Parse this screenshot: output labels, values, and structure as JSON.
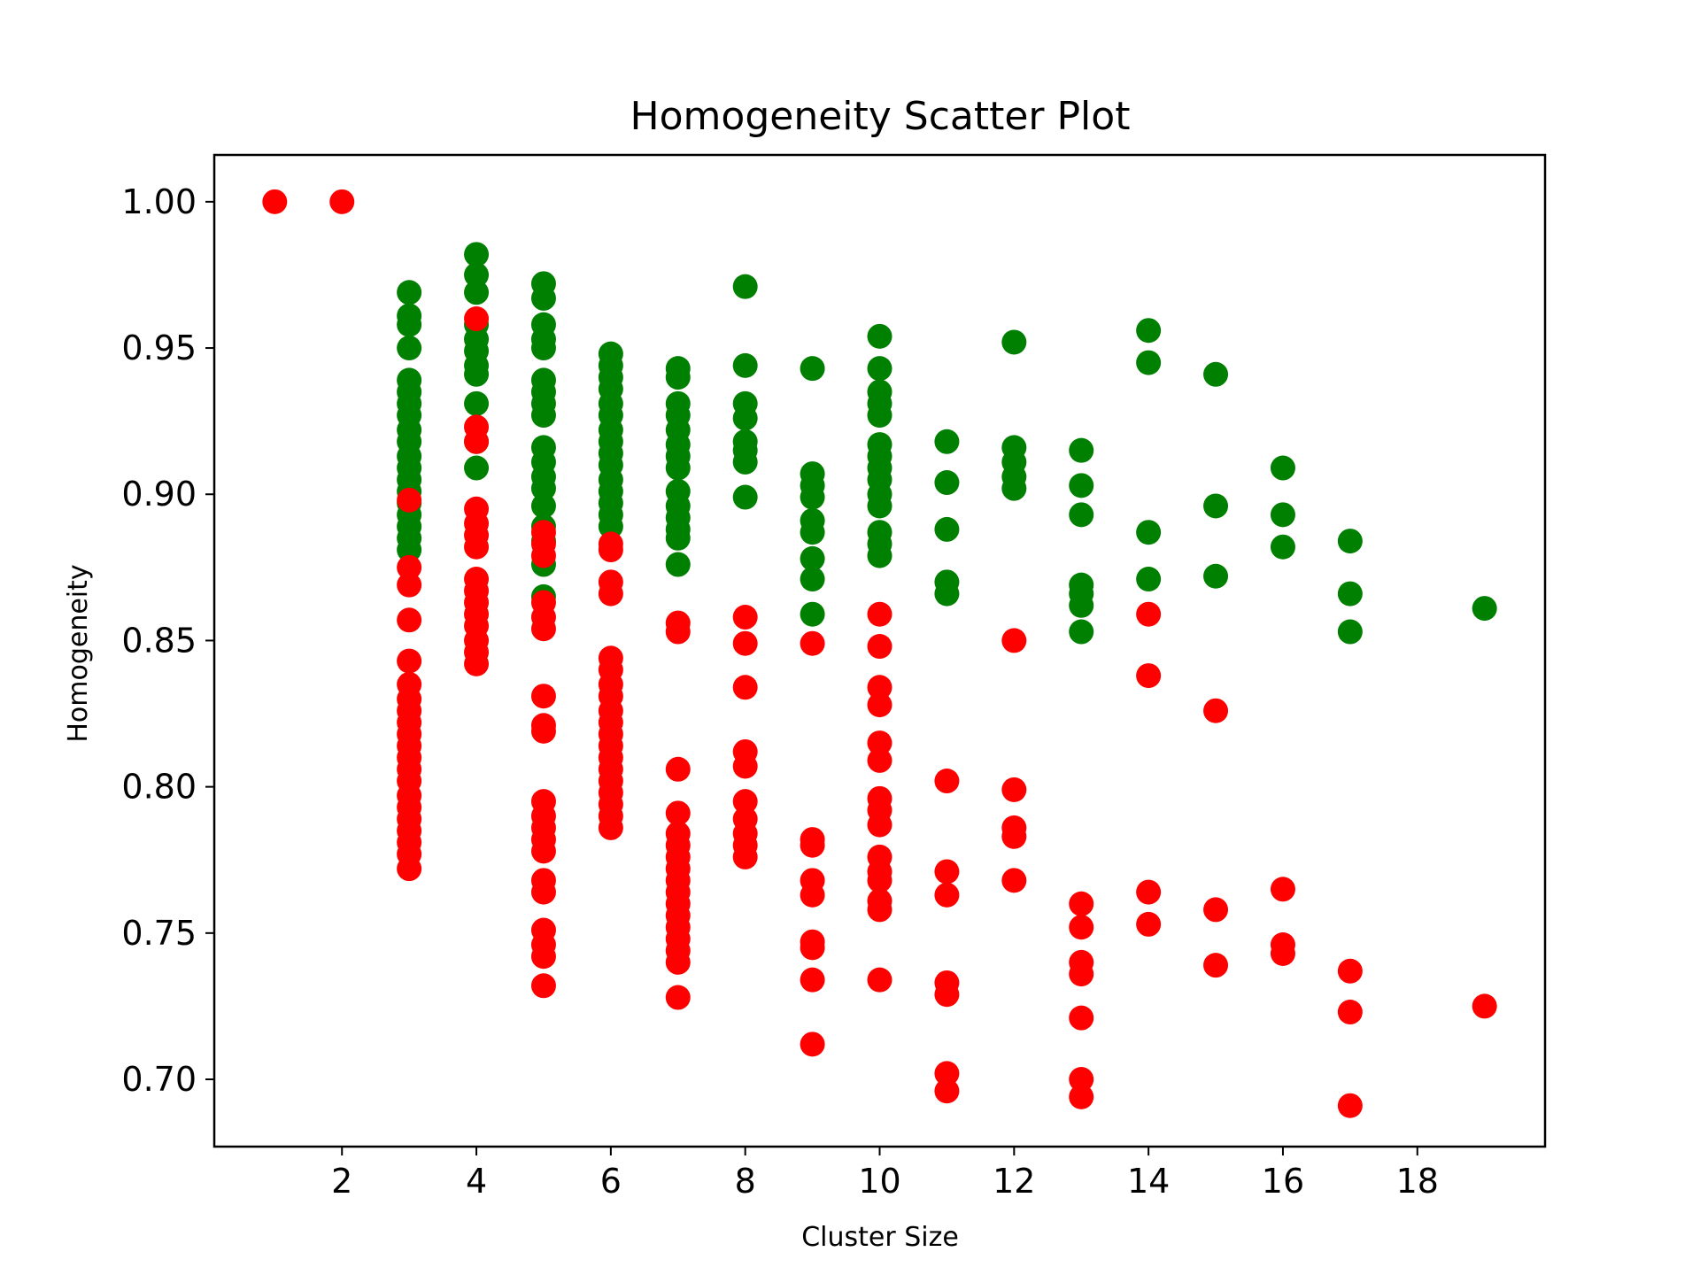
{
  "chart_data": {
    "type": "scatter",
    "title": "Homogeneity Scatter Plot",
    "xlabel": "Cluster Size",
    "ylabel": "Homogeneity",
    "xlim": [
      0.1,
      19.9
    ],
    "ylim": [
      0.677,
      1.016
    ],
    "xticks": [
      2,
      4,
      6,
      8,
      10,
      12,
      14,
      16,
      18
    ],
    "yticks": [
      0.7,
      0.75,
      0.8,
      0.85,
      0.9,
      0.95,
      1.0
    ],
    "grid": false,
    "legend": "none",
    "series": [
      {
        "color": "#008000",
        "points": [
          [
            3,
            0.969
          ],
          [
            3,
            0.961
          ],
          [
            3,
            0.958
          ],
          [
            3,
            0.95
          ],
          [
            3,
            0.939
          ],
          [
            3,
            0.935
          ],
          [
            3,
            0.931
          ],
          [
            3,
            0.927
          ],
          [
            3,
            0.922
          ],
          [
            3,
            0.918
          ],
          [
            3,
            0.913
          ],
          [
            3,
            0.909
          ],
          [
            3,
            0.905
          ],
          [
            3,
            0.901
          ],
          [
            3,
            0.897
          ],
          [
            3,
            0.893
          ],
          [
            3,
            0.889
          ],
          [
            3,
            0.885
          ],
          [
            3,
            0.881
          ],
          [
            4,
            0.982
          ],
          [
            4,
            0.975
          ],
          [
            4,
            0.969
          ],
          [
            4,
            0.958
          ],
          [
            4,
            0.953
          ],
          [
            4,
            0.949
          ],
          [
            4,
            0.944
          ],
          [
            4,
            0.941
          ],
          [
            4,
            0.931
          ],
          [
            4,
            0.918
          ],
          [
            4,
            0.909
          ],
          [
            5,
            0.972
          ],
          [
            5,
            0.967
          ],
          [
            5,
            0.958
          ],
          [
            5,
            0.953
          ],
          [
            5,
            0.95
          ],
          [
            5,
            0.939
          ],
          [
            5,
            0.935
          ],
          [
            5,
            0.931
          ],
          [
            5,
            0.927
          ],
          [
            5,
            0.916
          ],
          [
            5,
            0.911
          ],
          [
            5,
            0.906
          ],
          [
            5,
            0.902
          ],
          [
            5,
            0.896
          ],
          [
            5,
            0.889
          ],
          [
            5,
            0.884
          ],
          [
            5,
            0.876
          ],
          [
            5,
            0.865
          ],
          [
            6,
            0.948
          ],
          [
            6,
            0.944
          ],
          [
            6,
            0.94
          ],
          [
            6,
            0.936
          ],
          [
            6,
            0.931
          ],
          [
            6,
            0.927
          ],
          [
            6,
            0.922
          ],
          [
            6,
            0.918
          ],
          [
            6,
            0.914
          ],
          [
            6,
            0.91
          ],
          [
            6,
            0.905
          ],
          [
            6,
            0.901
          ],
          [
            6,
            0.897
          ],
          [
            6,
            0.893
          ],
          [
            6,
            0.889
          ],
          [
            7,
            0.943
          ],
          [
            7,
            0.94
          ],
          [
            7,
            0.931
          ],
          [
            7,
            0.927
          ],
          [
            7,
            0.922
          ],
          [
            7,
            0.917
          ],
          [
            7,
            0.913
          ],
          [
            7,
            0.909
          ],
          [
            7,
            0.901
          ],
          [
            7,
            0.896
          ],
          [
            7,
            0.892
          ],
          [
            7,
            0.888
          ],
          [
            7,
            0.885
          ],
          [
            7,
            0.876
          ],
          [
            8,
            0.971
          ],
          [
            8,
            0.944
          ],
          [
            8,
            0.931
          ],
          [
            8,
            0.926
          ],
          [
            8,
            0.918
          ],
          [
            8,
            0.915
          ],
          [
            8,
            0.911
          ],
          [
            8,
            0.899
          ],
          [
            9,
            0.943
          ],
          [
            9,
            0.907
          ],
          [
            9,
            0.903
          ],
          [
            9,
            0.899
          ],
          [
            9,
            0.891
          ],
          [
            9,
            0.887
          ],
          [
            9,
            0.878
          ],
          [
            9,
            0.871
          ],
          [
            9,
            0.859
          ],
          [
            10,
            0.954
          ],
          [
            10,
            0.943
          ],
          [
            10,
            0.935
          ],
          [
            10,
            0.931
          ],
          [
            10,
            0.927
          ],
          [
            10,
            0.917
          ],
          [
            10,
            0.913
          ],
          [
            10,
            0.909
          ],
          [
            10,
            0.905
          ],
          [
            10,
            0.9
          ],
          [
            10,
            0.896
          ],
          [
            10,
            0.887
          ],
          [
            10,
            0.883
          ],
          [
            10,
            0.879
          ],
          [
            11,
            0.918
          ],
          [
            11,
            0.904
          ],
          [
            11,
            0.888
          ],
          [
            11,
            0.87
          ],
          [
            11,
            0.866
          ],
          [
            12,
            0.952
          ],
          [
            12,
            0.916
          ],
          [
            12,
            0.911
          ],
          [
            12,
            0.906
          ],
          [
            12,
            0.902
          ],
          [
            13,
            0.915
          ],
          [
            13,
            0.903
          ],
          [
            13,
            0.893
          ],
          [
            13,
            0.869
          ],
          [
            13,
            0.866
          ],
          [
            13,
            0.862
          ],
          [
            13,
            0.853
          ],
          [
            14,
            0.956
          ],
          [
            14,
            0.945
          ],
          [
            14,
            0.887
          ],
          [
            14,
            0.871
          ],
          [
            15,
            0.941
          ],
          [
            15,
            0.896
          ],
          [
            15,
            0.872
          ],
          [
            16,
            0.909
          ],
          [
            16,
            0.893
          ],
          [
            16,
            0.882
          ],
          [
            17,
            0.884
          ],
          [
            17,
            0.866
          ],
          [
            17,
            0.853
          ],
          [
            19,
            0.861
          ]
        ]
      },
      {
        "color": "#ff0000",
        "points": [
          [
            1,
            1.0
          ],
          [
            2,
            1.0
          ],
          [
            3,
            0.898
          ],
          [
            3,
            0.875
          ],
          [
            3,
            0.869
          ],
          [
            3,
            0.857
          ],
          [
            3,
            0.843
          ],
          [
            3,
            0.835
          ],
          [
            3,
            0.83
          ],
          [
            3,
            0.826
          ],
          [
            3,
            0.822
          ],
          [
            3,
            0.818
          ],
          [
            3,
            0.814
          ],
          [
            3,
            0.81
          ],
          [
            3,
            0.806
          ],
          [
            3,
            0.802
          ],
          [
            3,
            0.797
          ],
          [
            3,
            0.793
          ],
          [
            3,
            0.789
          ],
          [
            3,
            0.785
          ],
          [
            3,
            0.781
          ],
          [
            3,
            0.777
          ],
          [
            3,
            0.772
          ],
          [
            4,
            0.96
          ],
          [
            4,
            0.923
          ],
          [
            4,
            0.918
          ],
          [
            4,
            0.895
          ],
          [
            4,
            0.89
          ],
          [
            4,
            0.886
          ],
          [
            4,
            0.882
          ],
          [
            4,
            0.871
          ],
          [
            4,
            0.867
          ],
          [
            4,
            0.863
          ],
          [
            4,
            0.859
          ],
          [
            4,
            0.855
          ],
          [
            4,
            0.85
          ],
          [
            4,
            0.846
          ],
          [
            4,
            0.842
          ],
          [
            5,
            0.887
          ],
          [
            5,
            0.883
          ],
          [
            5,
            0.879
          ],
          [
            5,
            0.863
          ],
          [
            5,
            0.858
          ],
          [
            5,
            0.854
          ],
          [
            5,
            0.831
          ],
          [
            5,
            0.821
          ],
          [
            5,
            0.819
          ],
          [
            5,
            0.795
          ],
          [
            5,
            0.79
          ],
          [
            5,
            0.786
          ],
          [
            5,
            0.782
          ],
          [
            5,
            0.778
          ],
          [
            5,
            0.768
          ],
          [
            5,
            0.764
          ],
          [
            5,
            0.751
          ],
          [
            5,
            0.746
          ],
          [
            5,
            0.742
          ],
          [
            5,
            0.732
          ],
          [
            6,
            0.883
          ],
          [
            6,
            0.881
          ],
          [
            6,
            0.87
          ],
          [
            6,
            0.866
          ],
          [
            6,
            0.844
          ],
          [
            6,
            0.84
          ],
          [
            6,
            0.835
          ],
          [
            6,
            0.831
          ],
          [
            6,
            0.826
          ],
          [
            6,
            0.822
          ],
          [
            6,
            0.818
          ],
          [
            6,
            0.814
          ],
          [
            6,
            0.81
          ],
          [
            6,
            0.806
          ],
          [
            6,
            0.802
          ],
          [
            6,
            0.798
          ],
          [
            6,
            0.794
          ],
          [
            6,
            0.79
          ],
          [
            6,
            0.786
          ],
          [
            7,
            0.856
          ],
          [
            7,
            0.853
          ],
          [
            7,
            0.806
          ],
          [
            7,
            0.791
          ],
          [
            7,
            0.784
          ],
          [
            7,
            0.78
          ],
          [
            7,
            0.776
          ],
          [
            7,
            0.772
          ],
          [
            7,
            0.768
          ],
          [
            7,
            0.764
          ],
          [
            7,
            0.76
          ],
          [
            7,
            0.756
          ],
          [
            7,
            0.752
          ],
          [
            7,
            0.748
          ],
          [
            7,
            0.744
          ],
          [
            7,
            0.74
          ],
          [
            7,
            0.728
          ],
          [
            8,
            0.858
          ],
          [
            8,
            0.849
          ],
          [
            8,
            0.834
          ],
          [
            8,
            0.812
          ],
          [
            8,
            0.807
          ],
          [
            8,
            0.795
          ],
          [
            8,
            0.789
          ],
          [
            8,
            0.784
          ],
          [
            8,
            0.78
          ],
          [
            8,
            0.776
          ],
          [
            9,
            0.849
          ],
          [
            9,
            0.782
          ],
          [
            9,
            0.78
          ],
          [
            9,
            0.768
          ],
          [
            9,
            0.763
          ],
          [
            9,
            0.747
          ],
          [
            9,
            0.745
          ],
          [
            9,
            0.734
          ],
          [
            9,
            0.712
          ],
          [
            10,
            0.859
          ],
          [
            10,
            0.848
          ],
          [
            10,
            0.834
          ],
          [
            10,
            0.828
          ],
          [
            10,
            0.815
          ],
          [
            10,
            0.809
          ],
          [
            10,
            0.796
          ],
          [
            10,
            0.792
          ],
          [
            10,
            0.787
          ],
          [
            10,
            0.776
          ],
          [
            10,
            0.771
          ],
          [
            10,
            0.768
          ],
          [
            10,
            0.761
          ],
          [
            10,
            0.758
          ],
          [
            10,
            0.734
          ],
          [
            11,
            0.802
          ],
          [
            11,
            0.771
          ],
          [
            11,
            0.763
          ],
          [
            11,
            0.733
          ],
          [
            11,
            0.729
          ],
          [
            11,
            0.702
          ],
          [
            11,
            0.696
          ],
          [
            12,
            0.85
          ],
          [
            12,
            0.799
          ],
          [
            12,
            0.786
          ],
          [
            12,
            0.783
          ],
          [
            12,
            0.768
          ],
          [
            13,
            0.76
          ],
          [
            13,
            0.752
          ],
          [
            13,
            0.74
          ],
          [
            13,
            0.736
          ],
          [
            13,
            0.721
          ],
          [
            13,
            0.7
          ],
          [
            13,
            0.694
          ],
          [
            14,
            0.859
          ],
          [
            14,
            0.838
          ],
          [
            14,
            0.764
          ],
          [
            14,
            0.753
          ],
          [
            15,
            0.826
          ],
          [
            15,
            0.758
          ],
          [
            15,
            0.739
          ],
          [
            16,
            0.765
          ],
          [
            16,
            0.746
          ],
          [
            16,
            0.743
          ],
          [
            17,
            0.737
          ],
          [
            17,
            0.723
          ],
          [
            17,
            0.691
          ],
          [
            19,
            0.725
          ]
        ]
      }
    ]
  }
}
